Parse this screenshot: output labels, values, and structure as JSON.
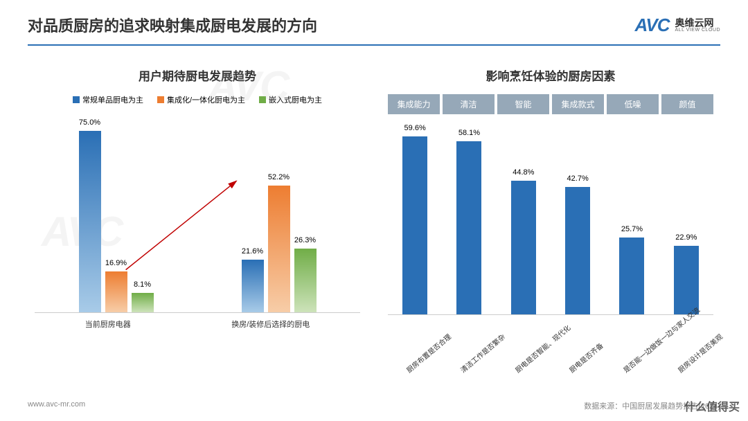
{
  "header": {
    "title": "对品质厨房的追求映射集成厨电发展的方向",
    "logo_mark": "AVC",
    "logo_cn": "奥维云网",
    "logo_en": "ALL VIEW CLOUD"
  },
  "left_chart": {
    "type": "bar",
    "title": "用户期待厨电发展趋势",
    "legend": [
      {
        "label": "常规单品厨电为主",
        "color": "#2a6fb5"
      },
      {
        "label": "集成化/一体化厨电为主",
        "color": "#ed7d31"
      },
      {
        "label": "嵌入式厨电为主",
        "color": "#70ad47"
      }
    ],
    "categories": [
      "当前厨房电器",
      "换房/装修后选择的厨电"
    ],
    "series": [
      {
        "name": "常规单品厨电为主",
        "color_top": "#2a6fb5",
        "color_bottom": "#a8cbe8",
        "values": [
          75.0,
          21.6
        ]
      },
      {
        "name": "集成化/一体化厨电为主",
        "color_top": "#ed7d31",
        "color_bottom": "#f7cda8",
        "values": [
          16.9,
          52.2
        ]
      },
      {
        "name": "嵌入式厨电为主",
        "color_top": "#70ad47",
        "color_bottom": "#cde3ba",
        "values": [
          8.1,
          26.3
        ]
      }
    ],
    "ylim": [
      0,
      80
    ],
    "arrow_color": "#c00000",
    "label_fontsize": 11
  },
  "right_chart": {
    "type": "bar",
    "title": "影响烹饪体验的厨房因素",
    "tabs": [
      "集成能力",
      "清洁",
      "智能",
      "集成款式",
      "低噪",
      "颜值"
    ],
    "tab_bg": "#96a8b8",
    "bar_color": "#2a6fb5",
    "items": [
      {
        "label": "厨房布置是否合理",
        "value": 59.6
      },
      {
        "label": "清洁工作是否繁杂",
        "value": 58.1
      },
      {
        "label": "厨电是否智能、现代化",
        "value": 44.8
      },
      {
        "label": "厨电是否齐备",
        "value": 42.7
      },
      {
        "label": "是否能一边做饭一边与家人交流",
        "value": 25.7
      },
      {
        "label": "厨房设计是否美观",
        "value": 22.9
      }
    ],
    "ylim": [
      0,
      65
    ],
    "label_fontsize": 11
  },
  "footer": {
    "url": "www.avc-mr.com",
    "source": "数据来源：中国厨居发展趋势报告(2024)"
  },
  "watermark_corner": "什么值得买",
  "background": "#ffffff"
}
